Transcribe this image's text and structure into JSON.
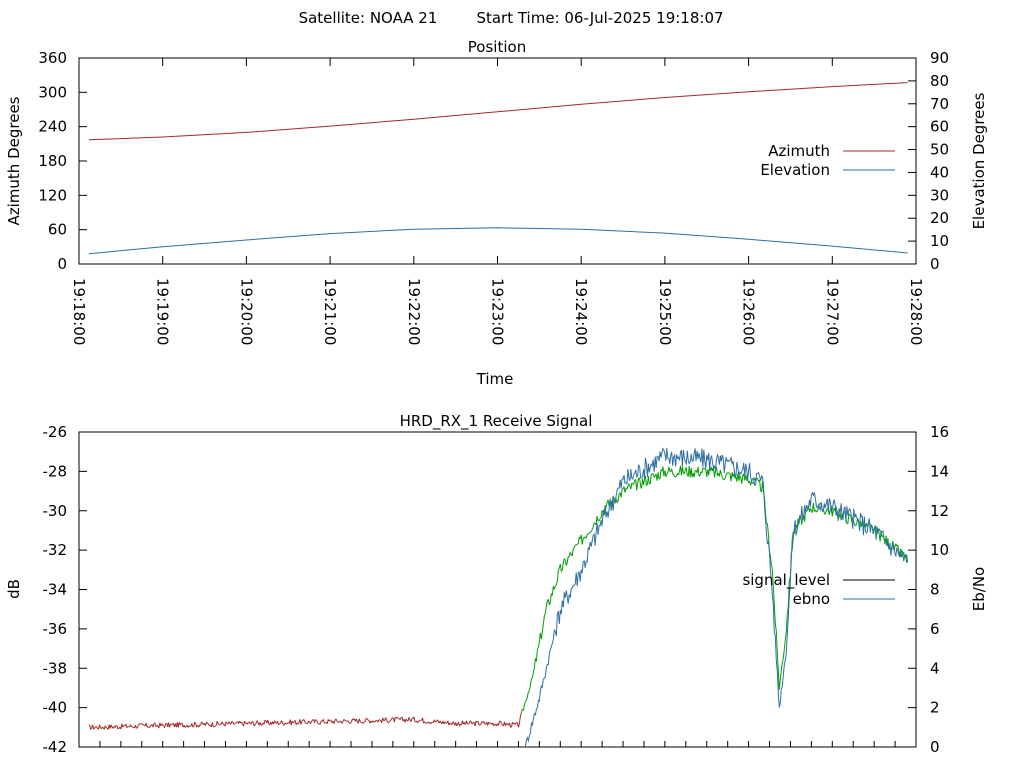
{
  "header": {
    "satellite_label": "Satellite: NOAA 21",
    "start_label": "Start Time: 06-Jul-2025 19:18:07"
  },
  "chart_data": [
    {
      "type": "line",
      "title": "Position",
      "xlabel": "Time",
      "ylabel": "Azimuth Degrees",
      "y2label": "Elevation Degrees",
      "xlim": [
        "19:18:00",
        "19:28:00"
      ],
      "ylim": [
        0,
        360
      ],
      "y2lim": [
        0,
        90
      ],
      "x_ticks": [
        "19:18:00",
        "19:19:00",
        "19:20:00",
        "19:21:00",
        "19:22:00",
        "19:23:00",
        "19:24:00",
        "19:25:00",
        "19:26:00",
        "19:27:00",
        "19:28:00"
      ],
      "y_ticks": [
        "0",
        "60",
        "120",
        "180",
        "240",
        "300",
        "360"
      ],
      "y2_ticks": [
        "0",
        "10",
        "20",
        "30",
        "40",
        "50",
        "60",
        "70",
        "80",
        "90"
      ],
      "legend_position": "right",
      "grid": false,
      "series": [
        {
          "name": "Azimuth",
          "axis": "y",
          "color": "#a52a2a",
          "points": [
            [
              "19:18:07",
              217
            ],
            [
              "19:19:00",
              222
            ],
            [
              "19:20:00",
              230
            ],
            [
              "19:21:00",
              241
            ],
            [
              "19:22:00",
              253
            ],
            [
              "19:23:00",
              266
            ],
            [
              "19:24:00",
              279
            ],
            [
              "19:25:00",
              291
            ],
            [
              "19:26:00",
              301
            ],
            [
              "19:27:00",
              310
            ],
            [
              "19:27:54",
              317
            ]
          ]
        },
        {
          "name": "Elevation",
          "axis": "y2",
          "color": "#2f6fa5",
          "points": [
            [
              "19:18:07",
              4.5
            ],
            [
              "19:19:00",
              7.5
            ],
            [
              "19:20:00",
              10.5
            ],
            [
              "19:21:00",
              13.3
            ],
            [
              "19:22:00",
              15.2
            ],
            [
              "19:23:00",
              15.8
            ],
            [
              "19:24:00",
              15.2
            ],
            [
              "19:25:00",
              13.5
            ],
            [
              "19:26:00",
              10.8
            ],
            [
              "19:27:00",
              7.8
            ],
            [
              "19:27:54",
              4.8
            ]
          ]
        }
      ]
    },
    {
      "type": "line",
      "title": "HRD_RX_1 Receive Signal",
      "xlabel": "",
      "ylabel": "dB",
      "y2label": "Eb/No",
      "xlim": [
        "19:18:00",
        "19:28:00"
      ],
      "ylim": [
        -42,
        -26
      ],
      "y2lim": [
        0,
        16
      ],
      "y_ticks": [
        "-42",
        "-40",
        "-38",
        "-36",
        "-34",
        "-32",
        "-30",
        "-28",
        "-26"
      ],
      "y2_ticks": [
        "0",
        "2",
        "4",
        "6",
        "8",
        "10",
        "12",
        "14",
        "16"
      ],
      "legend_position": "right",
      "grid": false,
      "segment_colors": {
        "low": "#a52a2a",
        "high": "#00a000"
      },
      "series": [
        {
          "name": "signal_level",
          "axis": "y",
          "color": "#000000",
          "points": [
            [
              "19:18:07",
              -41.0
            ],
            [
              "19:19:00",
              -40.9
            ],
            [
              "19:20:00",
              -40.8
            ],
            [
              "19:21:00",
              -40.7
            ],
            [
              "19:22:00",
              -40.6
            ],
            [
              "19:22:30",
              -40.8
            ],
            [
              "19:23:00",
              -40.8
            ],
            [
              "19:23:15",
              -40.9
            ],
            [
              "19:23:25",
              -38.5
            ],
            [
              "19:23:35",
              -35.0
            ],
            [
              "19:23:45",
              -33.0
            ],
            [
              "19:24:00",
              -31.5
            ],
            [
              "19:24:15",
              -30.0
            ],
            [
              "19:24:30",
              -29.0
            ],
            [
              "19:25:00",
              -28.0
            ],
            [
              "19:25:30",
              -28.0
            ],
            [
              "19:26:00",
              -28.4
            ],
            [
              "19:26:10",
              -28.8
            ],
            [
              "19:26:17",
              -33.0
            ],
            [
              "19:26:22",
              -39.0
            ],
            [
              "19:26:27",
              -36.0
            ],
            [
              "19:26:32",
              -31.0
            ],
            [
              "19:26:45",
              -29.8
            ],
            [
              "19:27:00",
              -30.0
            ],
            [
              "19:27:30",
              -31.0
            ],
            [
              "19:27:54",
              -32.5
            ]
          ]
        },
        {
          "name": "ebno",
          "axis": "y2",
          "color": "#2f6fa5",
          "points": [
            [
              "19:23:20",
              0.0
            ],
            [
              "19:23:30",
              2.5
            ],
            [
              "19:23:45",
              7.0
            ],
            [
              "19:24:00",
              9.0
            ],
            [
              "19:24:15",
              11.5
            ],
            [
              "19:24:30",
              13.5
            ],
            [
              "19:25:00",
              14.8
            ],
            [
              "19:25:30",
              14.6
            ],
            [
              "19:26:00",
              14.0
            ],
            [
              "19:26:10",
              13.5
            ],
            [
              "19:26:17",
              8.0
            ],
            [
              "19:26:22",
              2.0
            ],
            [
              "19:26:27",
              5.0
            ],
            [
              "19:26:32",
              11.0
            ],
            [
              "19:26:45",
              12.6
            ],
            [
              "19:27:00",
              12.2
            ],
            [
              "19:27:30",
              11.0
            ],
            [
              "19:27:54",
              9.4
            ]
          ]
        }
      ]
    }
  ]
}
